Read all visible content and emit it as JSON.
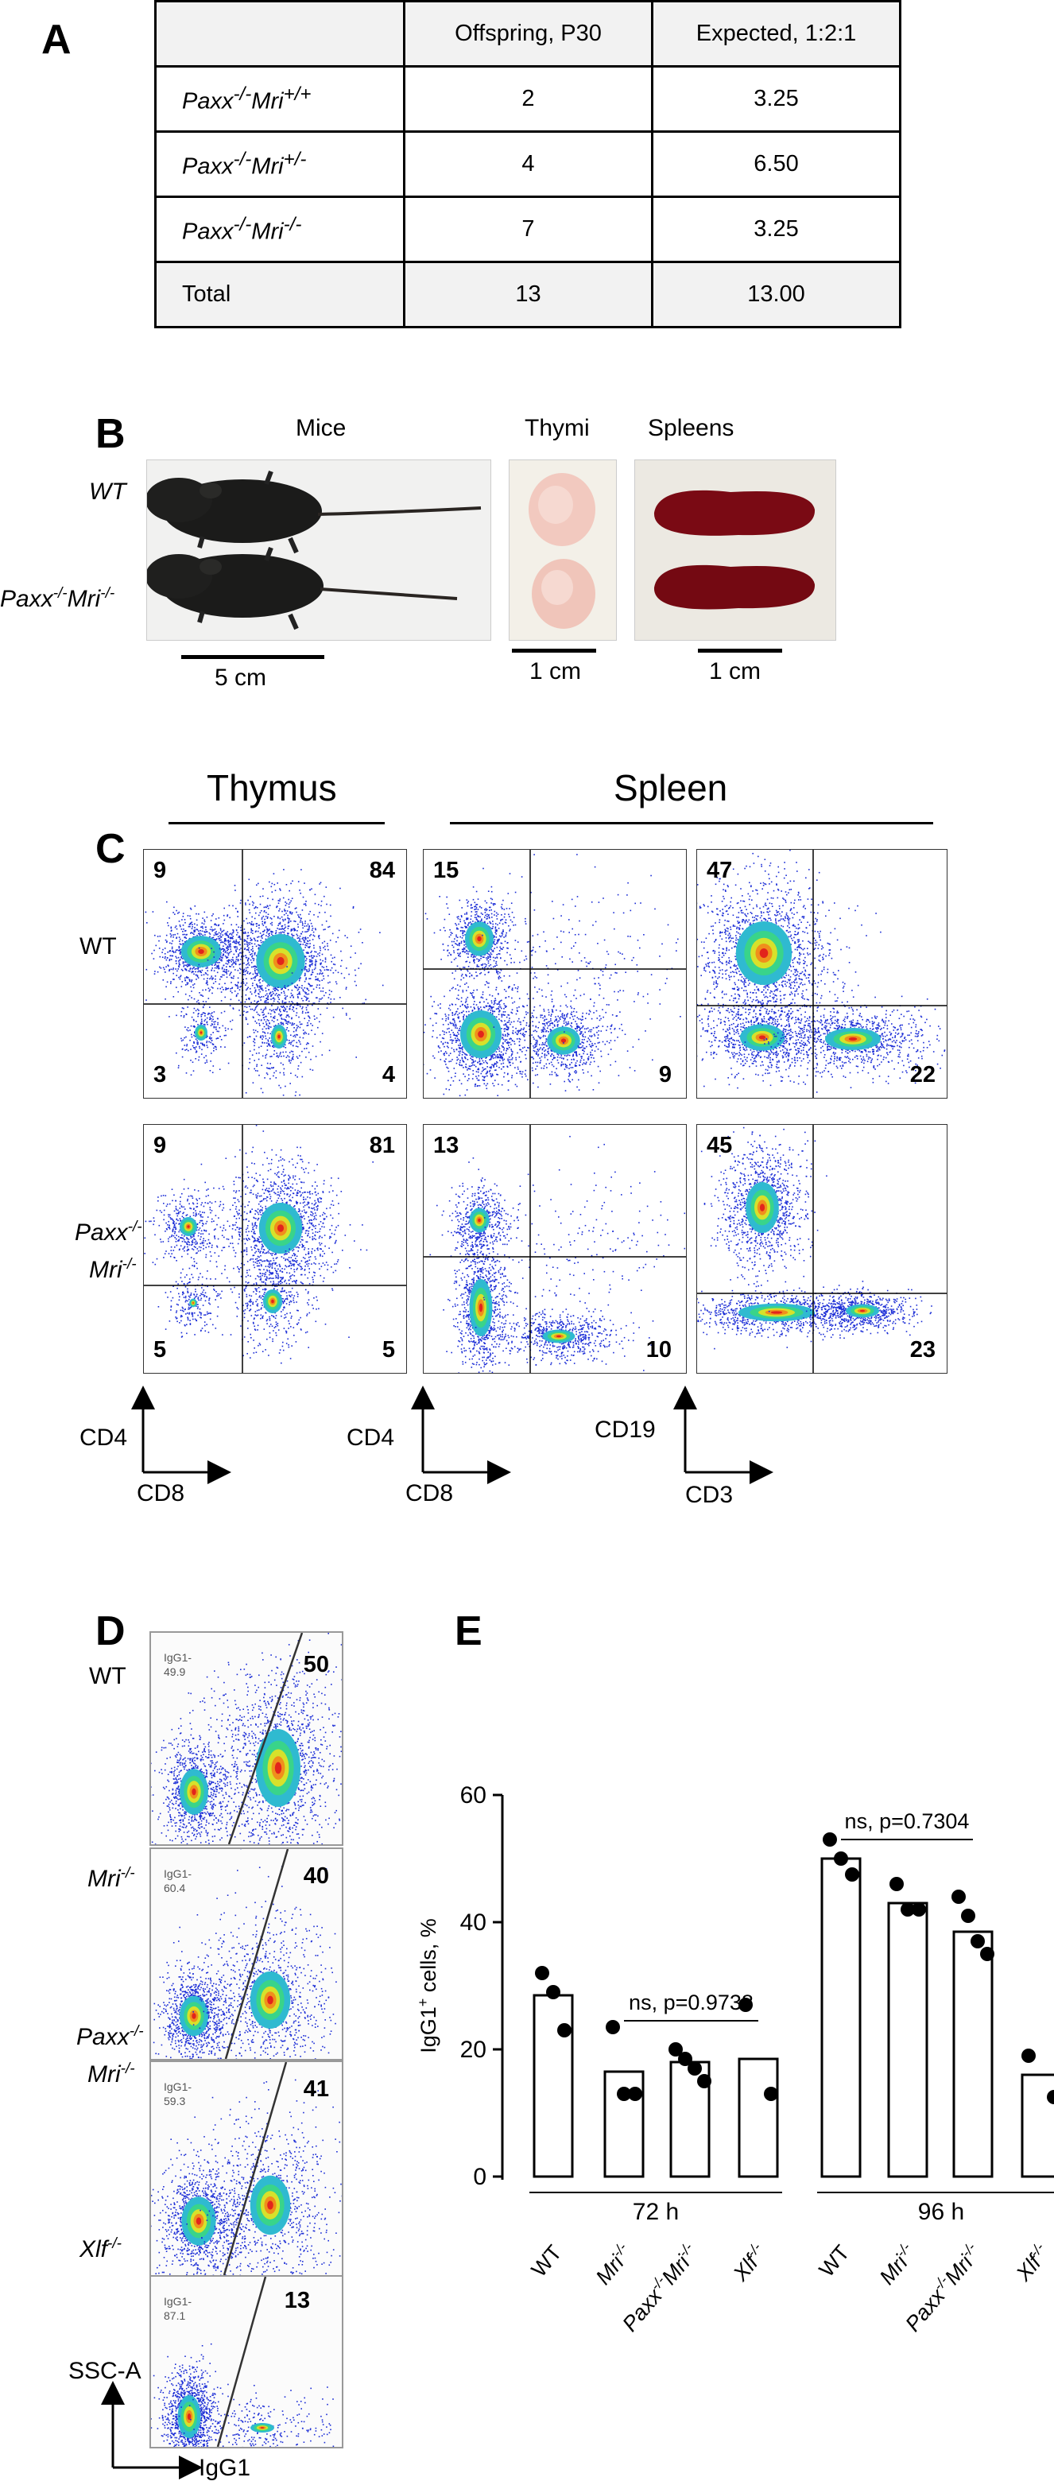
{
  "panels": {
    "a": "A",
    "b": "B",
    "c": "C",
    "d": "D",
    "e": "E"
  },
  "tableA": {
    "headers": [
      "",
      "Offspring, P30",
      "Expected, 1:2:1"
    ],
    "rows": [
      {
        "g1": "Paxx",
        "s1": "-/-",
        "g2": "Mri",
        "s2": "+/+",
        "offspring": "2",
        "expected": "3.25"
      },
      {
        "g1": "Paxx",
        "s1": "-/-",
        "g2": "Mri",
        "s2": "+/-",
        "offspring": "4",
        "expected": "6.50"
      },
      {
        "g1": "Paxx",
        "s1": "-/-",
        "g2": "Mri",
        "s2": "-/-",
        "offspring": "7",
        "expected": "3.25"
      }
    ],
    "total": {
      "label": "Total",
      "offspring": "13",
      "expected": "13.00"
    }
  },
  "panelB": {
    "titles": {
      "mice": "Mice",
      "thymi": "Thymi",
      "spleens": "Spleens"
    },
    "row_labels": {
      "wt": "WT",
      "mutant_g1": "Paxx",
      "mutant_s1": "-/-",
      "mutant_g2": "Mri",
      "mutant_s2": "-/-"
    },
    "scale_labels": {
      "mice": "5 cm",
      "thymi": "1 cm",
      "spleens": "1 cm"
    }
  },
  "panelC": {
    "headers": {
      "thymus": "Thymus",
      "spleen": "Spleen"
    },
    "row_labels": {
      "wt": "WT",
      "mutant_g1": "Paxx",
      "mutant_s1": "-/-",
      "mutant_g2": "Mri",
      "mutant_s2": "-/-"
    },
    "quadrants": {
      "wt_thymus": {
        "tl": "9",
        "tr": "84",
        "bl": "3",
        "br": "4"
      },
      "wt_spleen_cd4": {
        "tl": "15",
        "br": "9"
      },
      "wt_spleen_cd19": {
        "tl": "47",
        "br": "22"
      },
      "mut_thymus": {
        "tl": "9",
        "tr": "81",
        "bl": "5",
        "br": "5"
      },
      "mut_spleen_cd4": {
        "tl": "13",
        "br": "10"
      },
      "mut_spleen_cd19": {
        "tl": "45",
        "br": "23"
      }
    },
    "axes": [
      {
        "y": "CD4",
        "x": "CD8"
      },
      {
        "y": "CD4",
        "x": "CD8"
      },
      {
        "y": "CD19",
        "x": "CD3"
      }
    ]
  },
  "panelD": {
    "rows": [
      {
        "label_g1": "WT",
        "label_s1": "",
        "label_g2": "",
        "label_s2": "",
        "italic": false,
        "gate1": "IgG1-",
        "gate2": "49.9",
        "value": "50"
      },
      {
        "label_g1": "Mri",
        "label_s1": "-/-",
        "label_g2": "",
        "label_s2": "",
        "italic": true,
        "gate1": "IgG1-",
        "gate2": "60.4",
        "value": "40"
      },
      {
        "label_g1": "Paxx",
        "label_s1": "-/-",
        "label_g2": "Mri",
        "label_s2": "-/-",
        "italic": true,
        "gate1": "IgG1-",
        "gate2": "59.3",
        "value": "41"
      },
      {
        "label_g1": "Xlf",
        "label_s1": "-/-",
        "label_g2": "",
        "label_s2": "",
        "italic": true,
        "gate1": "IgG1-",
        "gate2": "87.1",
        "value": "13"
      }
    ],
    "axes": {
      "y": "SSC-A",
      "x": "IgG1"
    }
  },
  "chart_data": {
    "type": "bar",
    "ylabel_main": "IgG1",
    "ylabel_sup": "+",
    "ylabel_rest": " cells, %",
    "ylim": [
      0,
      60
    ],
    "yticks": [
      "0",
      "20",
      "40",
      "60"
    ],
    "groups": [
      {
        "name": "72 h",
        "annotation": "ns, p=0.9738"
      },
      {
        "name": "96 h",
        "annotation": "ns, p=0.7304"
      }
    ],
    "categories": [
      {
        "group": 0,
        "g1": "WT",
        "s1": "",
        "g2": "",
        "s2": "",
        "mean": 28.5,
        "points": [
          32,
          29,
          23
        ]
      },
      {
        "group": 0,
        "g1": "Mri",
        "s1": "-/-",
        "g2": "",
        "s2": "",
        "mean": 16.5,
        "points": [
          23.5,
          13,
          13
        ]
      },
      {
        "group": 0,
        "g1": "Paxx",
        "s1": "-/-",
        "g2": "Mri",
        "s2": "-/-",
        "mean": 18,
        "points": [
          20,
          18.5,
          17,
          15
        ]
      },
      {
        "group": 0,
        "g1": "Xlf",
        "s1": "-/-",
        "g2": "",
        "s2": "",
        "mean": 18.5,
        "points": [
          27,
          13
        ]
      },
      {
        "group": 1,
        "g1": "WT",
        "s1": "",
        "g2": "",
        "s2": "",
        "mean": 50,
        "points": [
          53,
          50,
          47.5
        ]
      },
      {
        "group": 1,
        "g1": "Mri",
        "s1": "-/-",
        "g2": "",
        "s2": "",
        "mean": 43,
        "points": [
          46,
          42,
          42
        ]
      },
      {
        "group": 1,
        "g1": "Paxx",
        "s1": "-/-",
        "g2": "Mri",
        "s2": "-/-",
        "mean": 38.5,
        "points": [
          44,
          41,
          37,
          35
        ]
      },
      {
        "group": 1,
        "g1": "Xlf",
        "s1": "-/-",
        "g2": "",
        "s2": "",
        "mean": 16,
        "points": [
          19,
          12.5
        ]
      }
    ]
  }
}
